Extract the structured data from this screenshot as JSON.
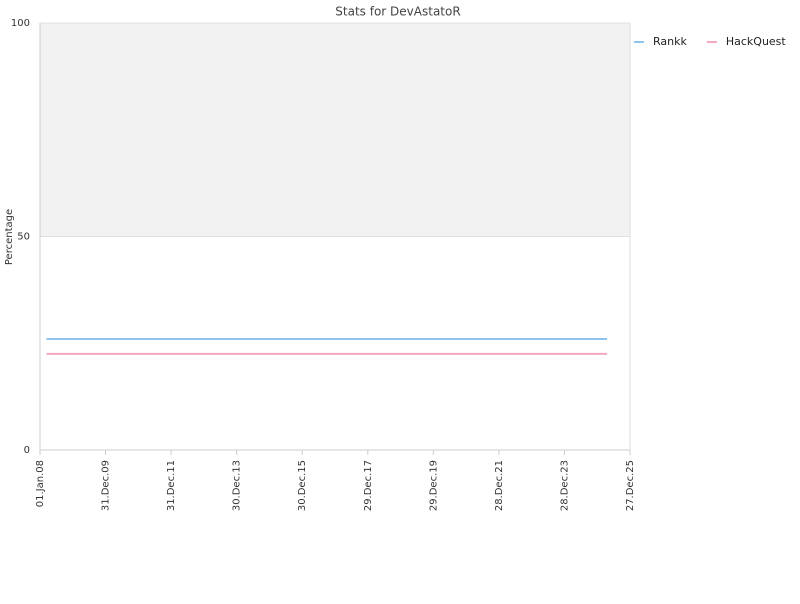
{
  "chart_data": {
    "type": "line",
    "title": "Stats for DevAstatoR",
    "y_label": "Percentage",
    "xlim": [
      2008,
      2026
    ],
    "xticks": [
      {
        "value": 2008,
        "label": "01.Jan.08"
      },
      {
        "value": 2010,
        "label": "31.Dec.09"
      },
      {
        "value": 2012,
        "label": "31.Dec.11"
      },
      {
        "value": 2014,
        "label": "30.Dec.13"
      },
      {
        "value": 2016,
        "label": "30.Dec.15"
      },
      {
        "value": 2018,
        "label": "29.Dec.17"
      },
      {
        "value": 2020,
        "label": "29.Dec.19"
      },
      {
        "value": 2022,
        "label": "28.Dec.21"
      },
      {
        "value": 2024,
        "label": "28.Dec.23"
      },
      {
        "value": 2026,
        "label": "27.Dec.25"
      }
    ],
    "ylim": [
      0,
      100
    ],
    "yticks": [
      0,
      50,
      100
    ],
    "plot_bands": [
      {
        "from": 50,
        "to": 100,
        "color": "#f2f2f2"
      }
    ],
    "legend": "top-right",
    "series": [
      {
        "name": "Rankk",
        "color": "#8cc4ee",
        "x": [
          2008.2,
          2025.3
        ],
        "values": [
          26,
          26
        ]
      },
      {
        "name": "HackQuest",
        "color": "#f2a7c0",
        "x": [
          2008.2,
          2025.3
        ],
        "values": [
          22.5,
          22.5
        ]
      }
    ]
  }
}
